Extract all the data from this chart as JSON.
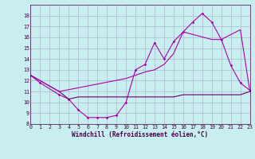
{
  "xlabel": "Windchill (Refroidissement éolien,°C)",
  "background_color": "#c8eef0",
  "grid_color": "#aabbcc",
  "line_color": "#aa00aa",
  "line_color_dark": "#660066",
  "xlim": [
    0,
    23
  ],
  "ylim": [
    8,
    19
  ],
  "yticks": [
    8,
    9,
    10,
    11,
    12,
    13,
    14,
    15,
    16,
    17,
    18
  ],
  "xticks": [
    0,
    1,
    2,
    3,
    4,
    5,
    6,
    7,
    8,
    9,
    10,
    11,
    12,
    13,
    14,
    15,
    16,
    17,
    18,
    19,
    20,
    21,
    22,
    23
  ],
  "s1_x": [
    0,
    1,
    3,
    4,
    5,
    6,
    7,
    8,
    9,
    10,
    11,
    12,
    13,
    14,
    15,
    16,
    17,
    18,
    19,
    20,
    21,
    22,
    23
  ],
  "s1_y": [
    12.5,
    11.8,
    10.7,
    10.3,
    9.3,
    8.6,
    8.6,
    8.6,
    8.8,
    10.0,
    13.0,
    13.5,
    15.5,
    14.0,
    15.6,
    16.5,
    17.4,
    18.2,
    17.4,
    15.8,
    13.4,
    11.8,
    11.1
  ],
  "s2_x": [
    0,
    3,
    4,
    5,
    6,
    7,
    8,
    9,
    10,
    11,
    12,
    13,
    14,
    15,
    16,
    17,
    18,
    19,
    20,
    21,
    22,
    23
  ],
  "s2_y": [
    12.5,
    11.0,
    10.3,
    10.5,
    10.5,
    10.5,
    10.5,
    10.5,
    10.5,
    10.5,
    10.5,
    10.5,
    10.5,
    10.5,
    10.7,
    10.7,
    10.7,
    10.7,
    10.7,
    10.7,
    10.7,
    11.0
  ],
  "s3_x": [
    0,
    3,
    10,
    12,
    13,
    14,
    15,
    16,
    19,
    20,
    22,
    23
  ],
  "s3_y": [
    12.5,
    11.0,
    12.2,
    12.8,
    13.0,
    13.5,
    14.5,
    16.5,
    15.8,
    15.8,
    16.7,
    11.0
  ]
}
